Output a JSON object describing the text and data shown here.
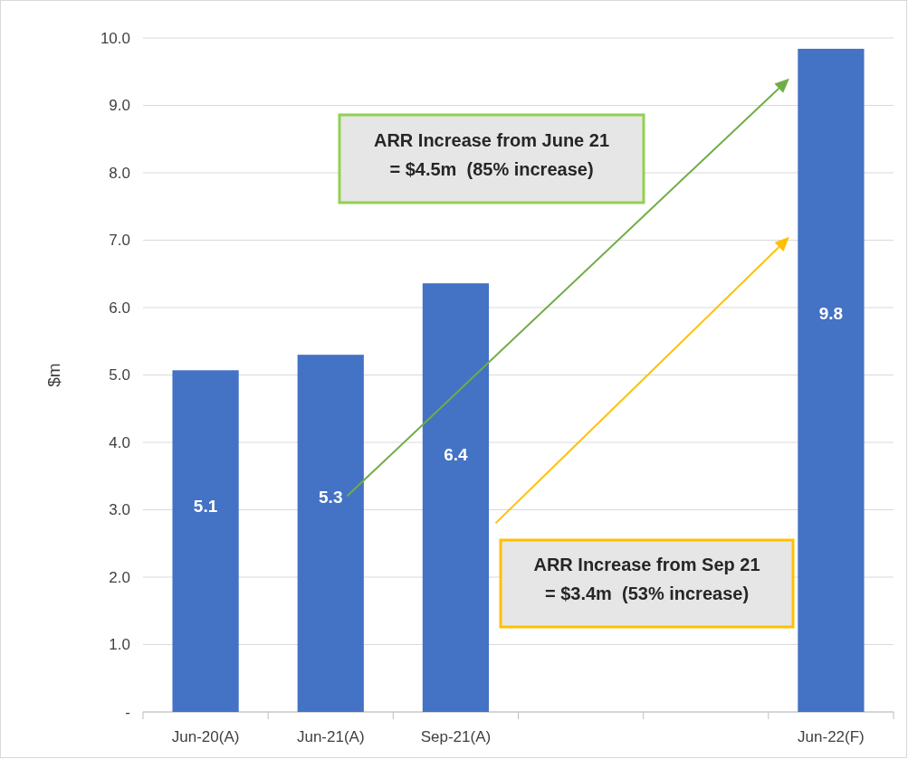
{
  "chart_data": {
    "type": "bar",
    "ylabel": "$m",
    "categories": [
      "Jun-20(A)",
      "Jun-21(A)",
      "Sep-21(A)",
      null,
      null,
      "Jun-22(F)"
    ],
    "values": [
      5.07,
      5.3,
      6.36,
      null,
      null,
      9.84
    ],
    "value_labels": [
      "5.1",
      "5.3",
      "6.4",
      null,
      null,
      "9.8"
    ],
    "color": "#4472c4",
    "ylim": [
      0,
      10
    ],
    "yticks": [
      {
        "value": 0,
        "label": "-"
      },
      {
        "value": 1,
        "label": "1.0"
      },
      {
        "value": 2,
        "label": "2.0"
      },
      {
        "value": 3,
        "label": "3.0"
      },
      {
        "value": 4,
        "label": "4.0"
      },
      {
        "value": 5,
        "label": "5.0"
      },
      {
        "value": 6,
        "label": "6.0"
      },
      {
        "value": 7,
        "label": "7.0"
      },
      {
        "value": 8,
        "label": "8.0"
      },
      {
        "value": 9,
        "label": "9.0"
      },
      {
        "value": 10,
        "label": "10.0"
      }
    ],
    "grid": "y",
    "annotations": [
      "ARR Increase from June 21\n= $4.5m  (85% increase)",
      "ARR Increase from Sep 21\n= $3.4m  (53% increase)"
    ]
  }
}
